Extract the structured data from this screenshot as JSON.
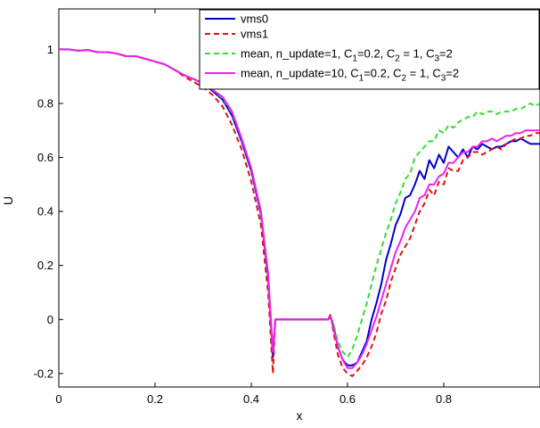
{
  "chart_data": {
    "type": "line",
    "title": "",
    "xlabel": "x",
    "ylabel": "U",
    "xlim": [
      0,
      1
    ],
    "ylim": [
      -0.25,
      1.15
    ],
    "xticks": [
      0,
      0.2,
      0.4,
      0.6,
      0.8
    ],
    "yticks": [
      -0.2,
      0,
      0.2,
      0.4,
      0.6,
      0.8,
      1
    ],
    "xtick_labels": [
      "0",
      "0.2",
      "0.4",
      "0.6",
      "0.8"
    ],
    "ytick_labels": [
      "-0.2",
      "0",
      "0.2",
      "0.4",
      "0.6",
      "0.8",
      "1"
    ],
    "grid": false,
    "legend_position": "top-right",
    "series": [
      {
        "name": "vms0",
        "color": "#0000cc",
        "dash": "solid",
        "x": [
          0,
          0.02,
          0.04,
          0.06,
          0.08,
          0.1,
          0.12,
          0.14,
          0.16,
          0.18,
          0.2,
          0.22,
          0.24,
          0.26,
          0.28,
          0.3,
          0.32,
          0.34,
          0.36,
          0.38,
          0.4,
          0.42,
          0.435,
          0.445,
          0.45,
          0.46,
          0.5,
          0.54,
          0.56,
          0.565,
          0.57,
          0.58,
          0.59,
          0.6,
          0.61,
          0.62,
          0.63,
          0.64,
          0.65,
          0.66,
          0.67,
          0.68,
          0.69,
          0.7,
          0.71,
          0.72,
          0.73,
          0.74,
          0.75,
          0.76,
          0.77,
          0.78,
          0.79,
          0.8,
          0.81,
          0.82,
          0.83,
          0.84,
          0.85,
          0.86,
          0.87,
          0.88,
          0.89,
          0.9,
          0.91,
          0.92,
          0.93,
          0.94,
          0.95,
          0.96,
          0.97,
          0.98,
          0.99,
          1.0
        ],
        "y": [
          1.0,
          1.0,
          0.995,
          0.998,
          0.99,
          0.99,
          0.985,
          0.975,
          0.975,
          0.965,
          0.955,
          0.945,
          0.925,
          0.905,
          0.89,
          0.875,
          0.845,
          0.815,
          0.755,
          0.66,
          0.55,
          0.39,
          0.15,
          -0.14,
          0.0,
          0.0,
          0.0,
          0.0,
          0.0,
          0.01,
          -0.02,
          -0.1,
          -0.15,
          -0.17,
          -0.17,
          -0.16,
          -0.12,
          -0.08,
          0.0,
          0.06,
          0.13,
          0.22,
          0.28,
          0.35,
          0.39,
          0.45,
          0.46,
          0.5,
          0.55,
          0.52,
          0.59,
          0.56,
          0.61,
          0.58,
          0.64,
          0.62,
          0.6,
          0.63,
          0.6,
          0.64,
          0.63,
          0.65,
          0.64,
          0.63,
          0.64,
          0.64,
          0.65,
          0.66,
          0.66,
          0.67,
          0.66,
          0.65,
          0.65,
          0.65
        ]
      },
      {
        "name": "vms1",
        "color": "#dd1111",
        "dash": "dashed",
        "x": [
          0,
          0.02,
          0.04,
          0.06,
          0.08,
          0.1,
          0.12,
          0.14,
          0.16,
          0.18,
          0.2,
          0.22,
          0.24,
          0.26,
          0.28,
          0.3,
          0.32,
          0.34,
          0.36,
          0.38,
          0.4,
          0.42,
          0.435,
          0.445,
          0.45,
          0.46,
          0.5,
          0.54,
          0.56,
          0.565,
          0.57,
          0.58,
          0.59,
          0.6,
          0.61,
          0.62,
          0.63,
          0.64,
          0.65,
          0.66,
          0.67,
          0.68,
          0.69,
          0.7,
          0.71,
          0.72,
          0.73,
          0.74,
          0.75,
          0.76,
          0.77,
          0.78,
          0.79,
          0.8,
          0.81,
          0.82,
          0.83,
          0.84,
          0.85,
          0.86,
          0.87,
          0.88,
          0.89,
          0.9,
          0.91,
          0.92,
          0.93,
          0.94,
          0.95,
          0.96,
          0.97,
          0.98,
          0.99,
          1.0
        ],
        "y": [
          1.0,
          1.0,
          0.995,
          0.998,
          0.99,
          0.99,
          0.985,
          0.975,
          0.975,
          0.965,
          0.955,
          0.945,
          0.925,
          0.9,
          0.88,
          0.86,
          0.83,
          0.79,
          0.72,
          0.63,
          0.51,
          0.35,
          0.1,
          -0.2,
          0.0,
          0.0,
          0.0,
          0.0,
          0.0,
          0.02,
          -0.04,
          -0.13,
          -0.18,
          -0.2,
          -0.21,
          -0.19,
          -0.17,
          -0.14,
          -0.1,
          -0.05,
          0.02,
          0.07,
          0.14,
          0.19,
          0.24,
          0.27,
          0.3,
          0.35,
          0.4,
          0.43,
          0.48,
          0.46,
          0.51,
          0.5,
          0.56,
          0.55,
          0.55,
          0.59,
          0.6,
          0.62,
          0.62,
          0.61,
          0.62,
          0.63,
          0.64,
          0.63,
          0.65,
          0.66,
          0.67,
          0.67,
          0.68,
          0.68,
          0.69,
          0.69
        ]
      },
      {
        "name": "mean, n_update=1, C1=0.2, C2 = 1, C3=2",
        "color": "#33dd33",
        "dash": "dashed",
        "x": [
          0,
          0.02,
          0.04,
          0.06,
          0.08,
          0.1,
          0.12,
          0.14,
          0.16,
          0.18,
          0.2,
          0.22,
          0.24,
          0.26,
          0.28,
          0.3,
          0.32,
          0.34,
          0.36,
          0.38,
          0.4,
          0.42,
          0.435,
          0.445,
          0.45,
          0.46,
          0.5,
          0.54,
          0.56,
          0.565,
          0.57,
          0.58,
          0.59,
          0.6,
          0.61,
          0.62,
          0.63,
          0.64,
          0.65,
          0.66,
          0.67,
          0.68,
          0.69,
          0.7,
          0.71,
          0.72,
          0.73,
          0.74,
          0.75,
          0.76,
          0.77,
          0.78,
          0.79,
          0.8,
          0.81,
          0.82,
          0.83,
          0.84,
          0.85,
          0.86,
          0.87,
          0.88,
          0.89,
          0.9,
          0.91,
          0.92,
          0.93,
          0.94,
          0.95,
          0.96,
          0.97,
          0.98,
          0.99,
          1.0
        ],
        "y": [
          1.0,
          1.0,
          0.995,
          0.998,
          0.99,
          0.99,
          0.985,
          0.975,
          0.975,
          0.965,
          0.955,
          0.945,
          0.925,
          0.905,
          0.89,
          0.875,
          0.85,
          0.82,
          0.765,
          0.67,
          0.56,
          0.4,
          0.16,
          -0.12,
          0.0,
          0.0,
          0.0,
          0.0,
          0.0,
          0.01,
          -0.01,
          -0.08,
          -0.12,
          -0.14,
          -0.11,
          -0.06,
          0.0,
          0.06,
          0.13,
          0.2,
          0.26,
          0.32,
          0.37,
          0.43,
          0.47,
          0.52,
          0.54,
          0.6,
          0.62,
          0.64,
          0.66,
          0.66,
          0.7,
          0.69,
          0.72,
          0.71,
          0.73,
          0.74,
          0.75,
          0.75,
          0.77,
          0.76,
          0.77,
          0.77,
          0.76,
          0.77,
          0.77,
          0.77,
          0.78,
          0.78,
          0.79,
          0.8,
          0.79,
          0.8
        ]
      },
      {
        "name": "mean, n_update=10, C1=0.2, C2 = 1, C3=2",
        "color": "#ee22ee",
        "dash": "solid",
        "x": [
          0,
          0.02,
          0.04,
          0.06,
          0.08,
          0.1,
          0.12,
          0.14,
          0.16,
          0.18,
          0.2,
          0.22,
          0.24,
          0.26,
          0.28,
          0.3,
          0.32,
          0.34,
          0.36,
          0.38,
          0.4,
          0.42,
          0.435,
          0.445,
          0.45,
          0.46,
          0.5,
          0.54,
          0.56,
          0.565,
          0.57,
          0.58,
          0.59,
          0.6,
          0.61,
          0.62,
          0.63,
          0.64,
          0.65,
          0.66,
          0.67,
          0.68,
          0.69,
          0.7,
          0.71,
          0.72,
          0.73,
          0.74,
          0.75,
          0.76,
          0.77,
          0.78,
          0.79,
          0.8,
          0.81,
          0.82,
          0.83,
          0.84,
          0.85,
          0.86,
          0.87,
          0.88,
          0.89,
          0.9,
          0.91,
          0.92,
          0.93,
          0.94,
          0.95,
          0.96,
          0.97,
          0.98,
          0.99,
          1.0
        ],
        "y": [
          1.0,
          1.0,
          0.995,
          0.998,
          0.99,
          0.99,
          0.985,
          0.975,
          0.975,
          0.965,
          0.955,
          0.945,
          0.925,
          0.905,
          0.89,
          0.875,
          0.85,
          0.825,
          0.77,
          0.67,
          0.56,
          0.4,
          0.17,
          -0.12,
          0.0,
          0.0,
          0.0,
          0.0,
          0.0,
          0.01,
          -0.03,
          -0.1,
          -0.15,
          -0.18,
          -0.18,
          -0.16,
          -0.13,
          -0.09,
          -0.04,
          0.01,
          0.07,
          0.13,
          0.19,
          0.25,
          0.29,
          0.34,
          0.37,
          0.4,
          0.45,
          0.46,
          0.5,
          0.5,
          0.53,
          0.54,
          0.58,
          0.58,
          0.6,
          0.62,
          0.62,
          0.64,
          0.64,
          0.66,
          0.66,
          0.67,
          0.66,
          0.67,
          0.68,
          0.68,
          0.69,
          0.69,
          0.7,
          0.7,
          0.7,
          0.7
        ]
      }
    ]
  },
  "legend": {
    "entries": [
      {
        "text": "vms0"
      },
      {
        "text": "vms1"
      },
      {
        "parts": [
          "mean, n_update=1, C",
          "1",
          "=0.2, C",
          "2",
          " = 1, C",
          "3",
          "=2"
        ]
      },
      {
        "parts": [
          "mean, n_update=10, C",
          "1",
          "=0.2, C",
          "2",
          " = 1, C",
          "3",
          "=2"
        ]
      }
    ]
  }
}
